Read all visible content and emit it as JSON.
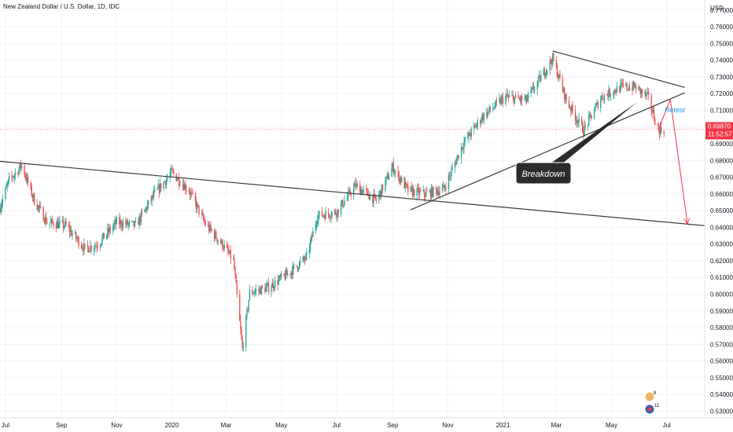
{
  "header": {
    "title": "New Zealand Dollar / U.S. Dollar, 1D, IDC"
  },
  "price_axis": {
    "unit": "USD"
  },
  "last_price": {
    "price": "0.69870",
    "countdown": "11:52:57",
    "value": 0.6987
  },
  "annotations": {
    "breakdown": "Breakdown",
    "retest": "Retest"
  },
  "events": {
    "top_count": "8",
    "bottom_count": "11"
  },
  "colors": {
    "up": "#26a69a",
    "down": "#ef5350",
    "trendline": "#3b3b3b",
    "arrow": "#f23645",
    "retest": "#2196f3"
  },
  "chart_data": {
    "type": "candlestick",
    "title": "New Zealand Dollar / U.S. Dollar, 1D, IDC",
    "x_ticks": [
      "Jul",
      "Sep",
      "Nov",
      "2020",
      "Mar",
      "May",
      "Jul",
      "Sep",
      "Nov",
      "2021",
      "Mar",
      "May",
      "Jul"
    ],
    "y_ticks": [
      "0.77000",
      "0.76000",
      "0.75000",
      "0.74000",
      "0.73000",
      "0.72000",
      "0.71000",
      "0.70000",
      "0.69000",
      "0.68000",
      "0.67000",
      "0.66000",
      "0.65000",
      "0.64000",
      "0.63000",
      "0.62000",
      "0.61000",
      "0.60000",
      "0.59000",
      "0.58000",
      "0.57000",
      "0.56000",
      "0.55000",
      "0.54000",
      "0.53000"
    ],
    "ylim": [
      0.526,
      0.776
    ],
    "date_range": [
      "2019-06-25",
      "2021-08-12"
    ],
    "price_path": [
      [
        "2019-06-25",
        0.652
      ],
      [
        "2019-07-05",
        0.668
      ],
      [
        "2019-07-19",
        0.677
      ],
      [
        "2019-08-02",
        0.656
      ],
      [
        "2019-08-16",
        0.643
      ],
      [
        "2019-09-06",
        0.641
      ],
      [
        "2019-09-27",
        0.627
      ],
      [
        "2019-10-11",
        0.63
      ],
      [
        "2019-11-01",
        0.643
      ],
      [
        "2019-11-22",
        0.641
      ],
      [
        "2019-12-13",
        0.66
      ],
      [
        "2020-01-01",
        0.673
      ],
      [
        "2020-01-20",
        0.662
      ],
      [
        "2020-02-07",
        0.642
      ],
      [
        "2020-02-27",
        0.629
      ],
      [
        "2020-03-09",
        0.62
      ],
      [
        "2020-03-19",
        0.567
      ],
      [
        "2020-03-27",
        0.601
      ],
      [
        "2020-04-17",
        0.604
      ],
      [
        "2020-05-08",
        0.612
      ],
      [
        "2020-05-29",
        0.622
      ],
      [
        "2020-06-10",
        0.647
      ],
      [
        "2020-07-01",
        0.649
      ],
      [
        "2020-07-22",
        0.665
      ],
      [
        "2020-08-14",
        0.656
      ],
      [
        "2020-09-01",
        0.676
      ],
      [
        "2020-09-18",
        0.662
      ],
      [
        "2020-10-07",
        0.66
      ],
      [
        "2020-10-28",
        0.663
      ],
      [
        "2020-11-18",
        0.69
      ],
      [
        "2020-12-09",
        0.706
      ],
      [
        "2021-01-04",
        0.718
      ],
      [
        "2021-01-27",
        0.716
      ],
      [
        "2021-02-25",
        0.741
      ],
      [
        "2021-03-12",
        0.716
      ],
      [
        "2021-03-31",
        0.698
      ],
      [
        "2021-04-20",
        0.718
      ],
      [
        "2021-05-12",
        0.724
      ],
      [
        "2021-05-27",
        0.724
      ],
      [
        "2021-06-10",
        0.718
      ],
      [
        "2021-06-22",
        0.698
      ],
      [
        "2021-06-29",
        0.6987
      ]
    ],
    "trendlines": [
      {
        "from": [
          "2019-06-25",
          0.6795
        ],
        "to": [
          "2021-08-12",
          0.641
        ]
      },
      {
        "from": [
          "2020-09-21",
          0.6505
        ],
        "to": [
          "2021-07-21",
          0.7205
        ]
      },
      {
        "from": [
          "2021-02-25",
          0.7455
        ],
        "to": [
          "2021-07-21",
          0.7237
        ]
      }
    ],
    "projection": [
      [
        "2021-06-22",
        0.6987
      ],
      [
        "2021-07-05",
        0.7165
      ],
      [
        "2021-07-24",
        0.642
      ]
    ],
    "labels": [
      "Breakdown",
      "Retest"
    ]
  }
}
